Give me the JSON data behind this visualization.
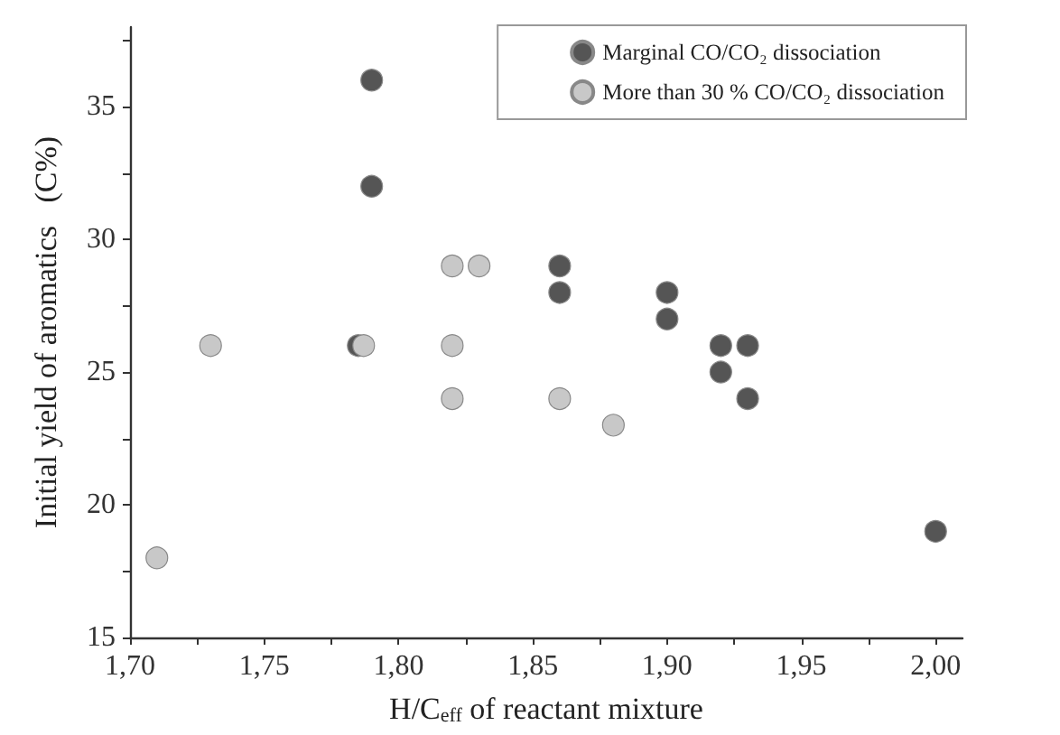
{
  "chart_data": {
    "type": "scatter",
    "xlabel": "H/C$_{eff}$ of reactant mixture",
    "ylabel": "Initial yield of aromatics   (C%)",
    "xlim": [
      1.7,
      2.01
    ],
    "ylim": [
      15,
      38
    ],
    "xticks": [
      {
        "value": 1.7,
        "label": "1,70"
      },
      {
        "value": 1.725,
        "label": null
      },
      {
        "value": 1.75,
        "label": "1,75"
      },
      {
        "value": 1.775,
        "label": null
      },
      {
        "value": 1.8,
        "label": "1,80"
      },
      {
        "value": 1.825,
        "label": null
      },
      {
        "value": 1.85,
        "label": "1,85"
      },
      {
        "value": 1.875,
        "label": null
      },
      {
        "value": 1.9,
        "label": "1,90"
      },
      {
        "value": 1.925,
        "label": null
      },
      {
        "value": 1.95,
        "label": "1,95"
      },
      {
        "value": 1.975,
        "label": null
      },
      {
        "value": 2.0,
        "label": "2,00"
      }
    ],
    "yticks": [
      15,
      {
        "value": 17.5,
        "label": null
      },
      20,
      {
        "value": 22.5,
        "label": null
      },
      25,
      {
        "value": 27.5,
        "label": null
      },
      30,
      {
        "value": 32.5,
        "label": null
      },
      35,
      {
        "value": 37.5,
        "label": null
      }
    ],
    "marker": "circle",
    "grid": false,
    "legend": "top right",
    "series": [
      {
        "name": "Marginal CO/CO₂ dissociation",
        "color": "#555555",
        "x": [
          1.79,
          1.79,
          1.785,
          1.86,
          1.86,
          1.9,
          1.9,
          1.92,
          1.93,
          1.92,
          1.93,
          2.0
        ],
        "values": [
          36,
          32,
          26,
          29,
          28,
          28,
          27,
          26,
          26,
          25,
          24,
          19
        ]
      },
      {
        "name": "More than 30 % CO/CO₂ dissociation",
        "color": "#c8c8c8",
        "x": [
          1.71,
          1.73,
          1.787,
          1.82,
          1.83,
          1.82,
          1.82,
          1.86,
          1.88
        ],
        "values": [
          18,
          26,
          26,
          29,
          29,
          26,
          24,
          24,
          23
        ]
      }
    ]
  }
}
